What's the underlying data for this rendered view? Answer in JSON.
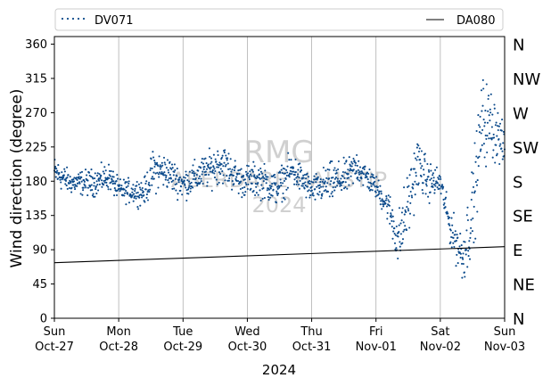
{
  "chart_data": {
    "type": "scatter",
    "ylabel": "Wind direction (degree)",
    "xlabel": "2024",
    "ylim": [
      0,
      370
    ],
    "yticks": [
      0,
      45,
      90,
      135,
      180,
      225,
      270,
      315,
      360
    ],
    "xticks": [
      {
        "day": 0,
        "dow": "Sun",
        "date": "Oct-27"
      },
      {
        "day": 1,
        "dow": "Mon",
        "date": "Oct-28"
      },
      {
        "day": 2,
        "dow": "Tue",
        "date": "Oct-29"
      },
      {
        "day": 3,
        "dow": "Wed",
        "date": "Oct-30"
      },
      {
        "day": 4,
        "dow": "Thu",
        "date": "Oct-31"
      },
      {
        "day": 5,
        "dow": "Fri",
        "date": "Nov-01"
      },
      {
        "day": 6,
        "dow": "Sat",
        "date": "Nov-02"
      },
      {
        "day": 7,
        "dow": "Sun",
        "date": "Nov-03"
      }
    ],
    "x_range": [
      "2024-10-27",
      "2024-11-03"
    ],
    "grid": "vertical",
    "legend": "top",
    "compass": [
      {
        "label": "N",
        "deg": 360
      },
      {
        "label": "NW",
        "deg": 315
      },
      {
        "label": "W",
        "deg": 270
      },
      {
        "label": "SW",
        "deg": 225
      },
      {
        "label": "S",
        "deg": 180
      },
      {
        "label": "SE",
        "deg": 135
      },
      {
        "label": "E",
        "deg": 90
      },
      {
        "label": "NE",
        "deg": 45
      },
      {
        "label": "N",
        "deg": 0
      }
    ],
    "watermark": [
      "RMG",
      "ABERDARE HAUSTIP",
      "2024"
    ],
    "series": [
      {
        "name": "DV071",
        "style": "dotted",
        "color": "#0b4a8b",
        "profile": [
          {
            "day": 0.0,
            "mean": 192,
            "spread": 14
          },
          {
            "day": 0.25,
            "mean": 178,
            "spread": 10
          },
          {
            "day": 0.6,
            "mean": 178,
            "spread": 12
          },
          {
            "day": 0.85,
            "mean": 186,
            "spread": 12
          },
          {
            "day": 1.0,
            "mean": 168,
            "spread": 10
          },
          {
            "day": 1.4,
            "mean": 166,
            "spread": 12
          },
          {
            "day": 1.55,
            "mean": 195,
            "spread": 20
          },
          {
            "day": 1.75,
            "mean": 192,
            "spread": 15
          },
          {
            "day": 2.0,
            "mean": 176,
            "spread": 14
          },
          {
            "day": 2.3,
            "mean": 190,
            "spread": 15
          },
          {
            "day": 2.6,
            "mean": 205,
            "spread": 18
          },
          {
            "day": 2.9,
            "mean": 180,
            "spread": 14
          },
          {
            "day": 3.2,
            "mean": 182,
            "spread": 16
          },
          {
            "day": 3.45,
            "mean": 170,
            "spread": 15
          },
          {
            "day": 3.7,
            "mean": 195,
            "spread": 16
          },
          {
            "day": 4.0,
            "mean": 168,
            "spread": 12
          },
          {
            "day": 4.3,
            "mean": 178,
            "spread": 18
          },
          {
            "day": 4.55,
            "mean": 185,
            "spread": 15
          },
          {
            "day": 4.7,
            "mean": 200,
            "spread": 15
          },
          {
            "day": 5.0,
            "mean": 172,
            "spread": 10
          },
          {
            "day": 5.2,
            "mean": 145,
            "spread": 14
          },
          {
            "day": 5.35,
            "mean": 100,
            "spread": 28
          },
          {
            "day": 5.5,
            "mean": 150,
            "spread": 30
          },
          {
            "day": 5.65,
            "mean": 205,
            "spread": 25
          },
          {
            "day": 5.8,
            "mean": 180,
            "spread": 18
          },
          {
            "day": 6.0,
            "mean": 178,
            "spread": 12
          },
          {
            "day": 6.15,
            "mean": 120,
            "spread": 15
          },
          {
            "day": 6.35,
            "mean": 80,
            "spread": 25
          },
          {
            "day": 6.5,
            "mean": 140,
            "spread": 40
          },
          {
            "day": 6.65,
            "mean": 260,
            "spread": 40
          },
          {
            "day": 6.85,
            "mean": 250,
            "spread": 30
          },
          {
            "day": 7.0,
            "mean": 220,
            "spread": 15
          }
        ]
      },
      {
        "name": "DA080",
        "style": "solid",
        "color": "#000000",
        "points": [
          {
            "day": 0,
            "value": 73
          },
          {
            "day": 7,
            "value": 94
          }
        ]
      }
    ]
  }
}
